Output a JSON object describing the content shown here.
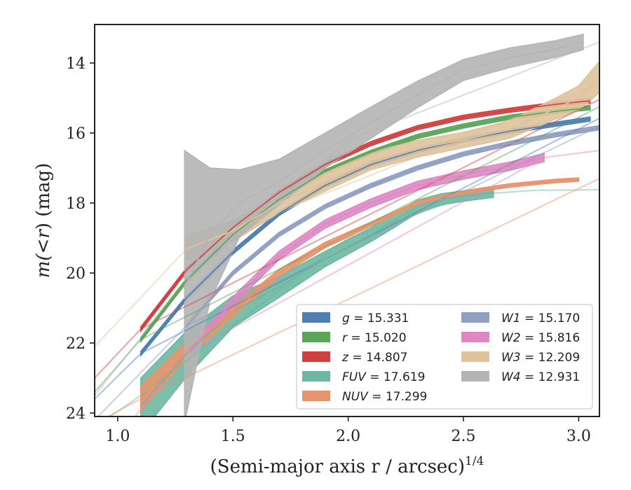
{
  "chart_data": {
    "type": "line",
    "xlabel": "(Semi-major axis r / arcsec)",
    "xlabel_sup": "1/4",
    "ylabel_pre": "m(",
    "ylabel_lt": "<",
    "ylabel_r": "r",
    "ylabel_post": ") (mag)",
    "xlim": [
      0.9,
      3.09
    ],
    "ylim": [
      24.1,
      12.9
    ],
    "y_inverted": true,
    "x_ticks": [
      1.0,
      1.5,
      2.0,
      2.5,
      3.0
    ],
    "x_tick_labels": [
      "1.0",
      "1.5",
      "2.0",
      "2.5",
      "3.0"
    ],
    "y_ticks": [
      14,
      16,
      18,
      20,
      22,
      24
    ],
    "y_tick_labels": [
      "14",
      "16",
      "18",
      "20",
      "22",
      "24"
    ],
    "grid": false,
    "legend_position": "lower-right",
    "series": [
      {
        "name": "g",
        "value": "15.331",
        "color": "#4e7faf",
        "x": [
          1.1,
          1.3,
          1.5,
          1.7,
          1.9,
          2.1,
          2.3,
          2.5,
          2.7,
          2.9,
          3.05
        ],
        "y": [
          22.3,
          20.7,
          19.4,
          18.3,
          17.5,
          16.9,
          16.5,
          16.2,
          15.95,
          15.75,
          15.6
        ],
        "band": [
          0.06,
          0.06,
          0.06,
          0.06,
          0.06,
          0.06,
          0.06,
          0.06,
          0.06,
          0.06,
          0.06
        ],
        "model_x": [
          0.9,
          1.1,
          3.09
        ],
        "model_y": [
          23.6,
          22.3,
          15.58
        ]
      },
      {
        "name": "r",
        "value": "15.020",
        "color": "#5aa55a",
        "x": [
          1.1,
          1.3,
          1.5,
          1.7,
          1.9,
          2.1,
          2.3,
          2.5,
          2.7,
          2.9,
          3.05
        ],
        "y": [
          21.9,
          20.2,
          18.9,
          17.9,
          17.1,
          16.55,
          16.1,
          15.8,
          15.55,
          15.38,
          15.28
        ],
        "band": [
          0.06,
          0.06,
          0.06,
          0.06,
          0.06,
          0.06,
          0.06,
          0.06,
          0.06,
          0.06,
          0.06
        ],
        "model_x": [
          0.9,
          1.1,
          3.09
        ],
        "model_y": [
          23.4,
          21.9,
          15.25
        ]
      },
      {
        "name": "z",
        "value": "14.807",
        "color": "#d04040",
        "x": [
          1.1,
          1.3,
          1.5,
          1.7,
          1.9,
          2.1,
          2.3,
          2.5,
          2.7,
          2.9,
          3.05
        ],
        "y": [
          21.6,
          19.9,
          18.7,
          17.7,
          16.9,
          16.3,
          15.85,
          15.55,
          15.35,
          15.18,
          15.08
        ],
        "band": [
          0.06,
          0.06,
          0.06,
          0.06,
          0.06,
          0.06,
          0.06,
          0.06,
          0.06,
          0.06,
          0.06
        ],
        "model_x": [
          0.9,
          1.1,
          3.09
        ],
        "model_y": [
          23.0,
          21.6,
          15.04
        ]
      },
      {
        "name": "FUV",
        "value": "17.619",
        "color": "#6db7a0",
        "x": [
          1.1,
          1.3,
          1.5,
          1.7,
          1.9,
          2.1,
          2.2,
          2.3,
          2.4,
          2.5,
          2.63
        ],
        "y": [
          23.8,
          22.3,
          21.1,
          20.4,
          19.6,
          18.9,
          18.5,
          18.1,
          17.9,
          17.8,
          17.7
        ],
        "band": [
          0.8,
          0.65,
          0.45,
          0.3,
          0.22,
          0.2,
          0.2,
          0.18,
          0.16,
          0.15,
          0.14
        ],
        "model_x": [
          0.9,
          1.1,
          1.5,
          2.0,
          2.5,
          2.63,
          2.8,
          3.09
        ],
        "model_y": [
          24.4,
          23.5,
          21.5,
          19.0,
          17.85,
          17.72,
          17.64,
          17.62
        ]
      },
      {
        "name": "NUV",
        "value": "17.299",
        "color": "#e8936e",
        "x": [
          1.1,
          1.3,
          1.5,
          1.7,
          1.9,
          2.1,
          2.3,
          2.5,
          2.7,
          2.9,
          3.0
        ],
        "y": [
          23.6,
          22.2,
          21.1,
          20.0,
          19.2,
          18.6,
          18.0,
          17.7,
          17.5,
          17.37,
          17.33
        ],
        "band": [
          0.35,
          0.25,
          0.15,
          0.1,
          0.08,
          0.06,
          0.05,
          0.05,
          0.05,
          0.05,
          0.05
        ],
        "model_x": [
          0.9,
          1.1,
          3.09
        ],
        "model_y": [
          24.3,
          23.6,
          17.3
        ]
      },
      {
        "name": "W1",
        "value": "15.170",
        "color": "#8f9fc3",
        "x": [
          1.3,
          1.5,
          1.7,
          1.9,
          2.1,
          2.3,
          2.5,
          2.7,
          2.9,
          3.09
        ],
        "y": [
          21.5,
          20.0,
          18.9,
          18.1,
          17.5,
          17.0,
          16.6,
          16.3,
          16.05,
          15.85
        ],
        "band": [
          0.06,
          0.06,
          0.06,
          0.06,
          0.06,
          0.06,
          0.06,
          0.06,
          0.06,
          0.06
        ],
        "model_x": [
          0.9,
          1.3,
          3.09
        ],
        "model_y": [
          24.2,
          21.5,
          15.8
        ]
      },
      {
        "name": "W2",
        "value": "15.816",
        "color": "#dd88c3",
        "x": [
          1.3,
          1.5,
          1.7,
          1.9,
          2.1,
          2.3,
          2.5,
          2.7,
          2.85
        ],
        "y": [
          22.3,
          20.8,
          19.5,
          18.6,
          18.0,
          17.5,
          17.2,
          16.95,
          16.7
        ],
        "band": [
          0.12,
          0.12,
          0.12,
          0.12,
          0.12,
          0.12,
          0.12,
          0.12,
          0.12
        ],
        "model_x": [
          0.9,
          1.3,
          2.85,
          3.09
        ],
        "model_y": [
          25.5,
          22.3,
          16.7,
          16.5
        ]
      },
      {
        "name": "W3",
        "value": "12.209",
        "color": "#dec29c",
        "x": [
          1.3,
          1.5,
          1.7,
          1.9,
          2.1,
          2.3,
          2.5,
          2.7,
          2.8,
          2.9,
          3.0,
          3.09
        ],
        "y": [
          19.3,
          18.8,
          18.0,
          17.4,
          16.8,
          16.45,
          16.2,
          15.9,
          15.6,
          15.3,
          15.0,
          14.4
        ],
        "band": [
          0.35,
          0.3,
          0.28,
          0.26,
          0.25,
          0.24,
          0.22,
          0.25,
          0.28,
          0.3,
          0.35,
          0.45
        ],
        "model_x": [
          0.9,
          1.3,
          3.09
        ],
        "model_y": [
          22.1,
          19.3,
          14.6
        ]
      },
      {
        "name": "W4",
        "value": "12.931",
        "color": "#b4b4b4",
        "x": [
          1.29,
          1.4,
          1.53,
          1.7,
          1.9,
          2.1,
          2.3,
          2.5,
          2.7,
          2.9,
          3.02
        ],
        "y": [
          20.4,
          18.9,
          18.0,
          17.4,
          16.5,
          15.7,
          14.9,
          14.2,
          13.85,
          13.6,
          13.4
        ],
        "band": [
          3.9,
          1.9,
          0.95,
          0.65,
          0.5,
          0.45,
          0.38,
          0.3,
          0.28,
          0.24,
          0.22
        ],
        "model_x": [
          0.9,
          1.3,
          2.0,
          3.09
        ],
        "model_y": [
          23.5,
          20.2,
          16.2,
          13.4
        ]
      }
    ]
  }
}
